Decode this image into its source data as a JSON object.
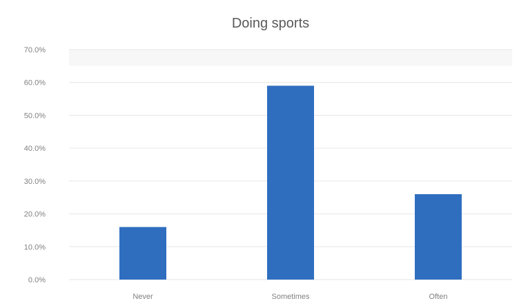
{
  "chart_data": {
    "type": "bar",
    "title": "Doing sports",
    "categories": [
      "Never",
      "Sometimes",
      "Often"
    ],
    "values": [
      16.0,
      59.0,
      26.0
    ],
    "ylim": [
      0,
      70
    ],
    "yticks": [
      "0.0%",
      "10.0%",
      "20.0%",
      "30.0%",
      "40.0%",
      "50.0%",
      "60.0%",
      "70.0%"
    ],
    "xlabel": "",
    "ylabel": "",
    "grid": true,
    "legend": "none",
    "bar_color": "#2f6ebf"
  }
}
